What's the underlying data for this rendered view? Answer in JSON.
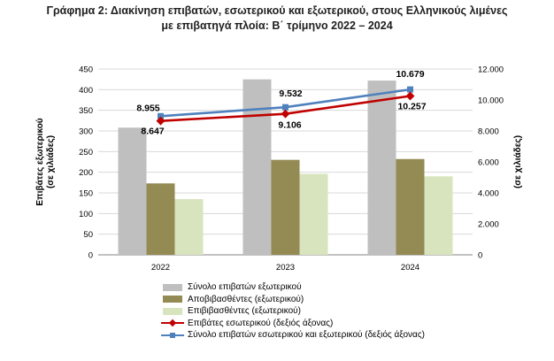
{
  "title_line1": "Γράφημα 2: Διακίνηση επιβατών, εσωτερικού και εξωτερικού, στους Ελληνικούς λιμένες",
  "title_line2": "με επιβατηγά πλοία: Β΄ τρίμηνο 2022 – 2024",
  "chart_data": {
    "type": "bar",
    "categories": [
      "2022",
      "2023",
      "2024"
    ],
    "ylabel_left": "Επιβάτες εξωτερικού (σε χιλιάδες)",
    "ylabel_left_lines": [
      "Επιβάτες εξωτερικού",
      "(σε χιλιάδες)"
    ],
    "ylabel_right": "(σε χιλιάδες)",
    "ylim_left": [
      0,
      450
    ],
    "ylim_right": [
      0,
      12000
    ],
    "yticks_left": [
      "0",
      "50",
      "100",
      "150",
      "200",
      "250",
      "300",
      "350",
      "400",
      "450"
    ],
    "yticks_right": [
      "0",
      "2.000",
      "4.000",
      "6.000",
      "8.000",
      "10.000",
      "12.000"
    ],
    "grid": true,
    "legend_position": "bottom",
    "series": [
      {
        "name": "Σύνολο επιβατών εξωτερικού",
        "type": "bar",
        "axis": "left",
        "color": "#bfbfbf",
        "values": [
          308,
          425,
          422
        ]
      },
      {
        "name": "Αποβιβασθέντες (εξωτερικού)",
        "type": "bar",
        "axis": "left",
        "color": "#948a54",
        "values": [
          173,
          230,
          232
        ]
      },
      {
        "name": "Επιβιβασθέντες (εξωτερικού)",
        "type": "bar",
        "axis": "left",
        "color": "#d7e4bd",
        "values": [
          135,
          196,
          190
        ]
      },
      {
        "name": "Επιβάτες εσωτερικού (δεξιός άξονας)",
        "type": "line",
        "axis": "right",
        "color": "#c00000",
        "marker": "diamond",
        "values": [
          8647,
          9106,
          10257
        ],
        "labels": [
          "8.647",
          "9.106",
          "10.257"
        ]
      },
      {
        "name": "Σύνολο επιβατών εσωτερικού και εξωτερικού (δεξιός άξονας)",
        "type": "line",
        "axis": "right",
        "color": "#4f81bd",
        "marker": "square",
        "values": [
          8955,
          9532,
          10679
        ],
        "labels": [
          "8.955",
          "9.532",
          "10.679"
        ]
      }
    ]
  }
}
